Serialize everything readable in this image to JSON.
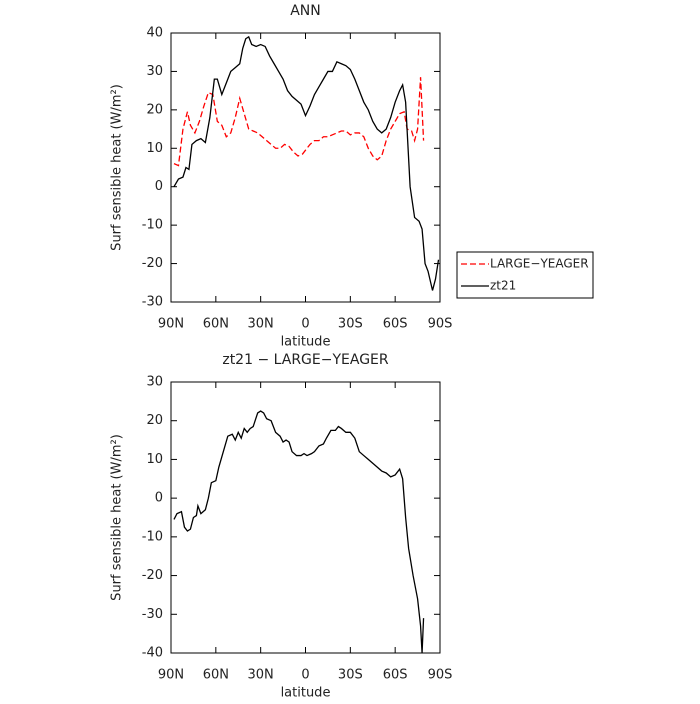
{
  "chart_data": [
    {
      "type": "line",
      "title": "ANN",
      "x_label": "latitude",
      "y_label": "Surf sensible heat (W/m²)",
      "xlim": [
        90,
        -90
      ],
      "xticks": [
        {
          "value": 90,
          "label": "90N"
        },
        {
          "value": 60,
          "label": "60N"
        },
        {
          "value": 30,
          "label": "30N"
        },
        0,
        {
          "value": -30,
          "label": "30S"
        },
        {
          "value": -60,
          "label": "60S"
        },
        {
          "value": -90,
          "label": "90S"
        }
      ],
      "ylim": [
        -30,
        40
      ],
      "yticks": [
        -30,
        -20,
        -10,
        0,
        10,
        20,
        30,
        40
      ],
      "legend": "right",
      "series": [
        {
          "name": "LARGE−YEAGER",
          "color": "#ff0000",
          "line_style": "dashed",
          "x": [
            88,
            85,
            82,
            79,
            77,
            74,
            71,
            68,
            65,
            62,
            59,
            56,
            53,
            50,
            47,
            44,
            41,
            38,
            35,
            32,
            29,
            26,
            23,
            20,
            17,
            14,
            11,
            8,
            5,
            2,
            0,
            -3,
            -6,
            -9,
            -12,
            -15,
            -18,
            -21,
            -24,
            -27,
            -30,
            -33,
            -36,
            -39,
            -42,
            -45,
            -48,
            -51,
            -54,
            -57,
            -60,
            -63,
            -66,
            -68,
            -71,
            -73,
            -75,
            -77,
            -79
          ],
          "values": [
            6,
            5.5,
            15,
            19.5,
            16,
            14,
            17,
            21,
            24.5,
            24,
            17,
            16,
            13,
            14,
            18,
            23,
            19,
            15,
            14.5,
            14,
            13,
            12,
            11,
            10,
            10,
            11,
            10.5,
            9,
            8,
            8.5,
            9.5,
            11,
            12,
            12,
            13,
            13,
            13.5,
            14,
            14.5,
            14.5,
            13.5,
            14,
            14,
            13,
            10,
            8,
            7,
            8,
            12,
            15,
            17,
            19,
            19.5,
            15,
            14.5,
            12,
            15,
            28.5,
            12
          ]
        },
        {
          "name": "zt21",
          "color": "#000000",
          "line_style": "solid",
          "x": [
            88,
            85,
            82,
            80,
            78,
            76,
            73,
            70,
            67,
            64,
            61,
            59,
            56,
            53,
            50,
            47,
            44,
            42,
            40,
            38,
            36,
            33,
            30,
            27,
            24,
            21,
            18,
            15,
            12,
            9,
            6,
            3,
            0,
            -3,
            -6,
            -9,
            -12,
            -15,
            -18,
            -21,
            -24,
            -27,
            -30,
            -33,
            -36,
            -39,
            -42,
            -45,
            -48,
            -51,
            -54,
            -57,
            -60,
            -63,
            -65,
            -67,
            -70,
            -73,
            -76,
            -78,
            -80,
            -82,
            -85,
            -87,
            -89
          ],
          "values": [
            0,
            2,
            2.5,
            5,
            4.5,
            11,
            12,
            12.5,
            11.5,
            18,
            28,
            28,
            24,
            27,
            30,
            31,
            32,
            36,
            38.5,
            39,
            37,
            36.5,
            37,
            36.5,
            34,
            32,
            30,
            28,
            25,
            23.5,
            22.5,
            21.5,
            18.5,
            21,
            24,
            26,
            28,
            30,
            30,
            32.5,
            32,
            31.5,
            30.5,
            28,
            25,
            22,
            20,
            17,
            15,
            14,
            15,
            18,
            22,
            25,
            26.5,
            22,
            0,
            -8,
            -9,
            -11,
            -20,
            -22,
            -27,
            -24,
            -19
          ]
        }
      ]
    },
    {
      "type": "line",
      "title": "zt21 − LARGE−YEAGER",
      "x_label": "latitude",
      "y_label": "Surf sensible heat (W/m²)",
      "xlim": [
        90,
        -90
      ],
      "xticks": [
        {
          "value": 90,
          "label": "90N"
        },
        {
          "value": 60,
          "label": "60N"
        },
        {
          "value": 30,
          "label": "30N"
        },
        0,
        {
          "value": -30,
          "label": "30S"
        },
        {
          "value": -60,
          "label": "60S"
        },
        {
          "value": -90,
          "label": "90S"
        }
      ],
      "ylim": [
        -40,
        30
      ],
      "yticks": [
        -40,
        -30,
        -20,
        -10,
        0,
        10,
        20,
        30
      ],
      "series": [
        {
          "color": "#000000",
          "line_style": "solid",
          "x": [
            88,
            86,
            83,
            81,
            79,
            77,
            75,
            73,
            72,
            70,
            67,
            65,
            63,
            60,
            58,
            55,
            52,
            49,
            47,
            45,
            43,
            41,
            39,
            37,
            35,
            32,
            30,
            28,
            26,
            23,
            20,
            17,
            15,
            13,
            11,
            9,
            6,
            3,
            1,
            -1,
            -4,
            -6,
            -9,
            -12,
            -14,
            -17,
            -20,
            -22,
            -24,
            -27,
            -30,
            -33,
            -36,
            -39,
            -42,
            -45,
            -48,
            -51,
            -54,
            -57,
            -60,
            -63,
            -65,
            -67,
            -69,
            -72,
            -75,
            -77,
            -78,
            -79
          ],
          "values": [
            -5.5,
            -4,
            -3.5,
            -7.5,
            -8.5,
            -8,
            -5,
            -4.5,
            -2,
            -4,
            -3,
            0,
            4,
            4.5,
            8,
            12,
            16,
            16.5,
            15,
            17,
            15.5,
            18,
            17,
            18,
            18.5,
            22,
            22.5,
            22,
            20.5,
            20,
            17,
            16,
            14.5,
            15,
            14.5,
            12,
            11,
            11,
            11.5,
            11,
            11.5,
            12,
            13.5,
            14,
            15.5,
            17.5,
            17.5,
            18.5,
            18,
            17,
            17,
            15.5,
            12,
            11,
            10,
            9,
            8,
            7,
            6.5,
            5.5,
            6,
            7.5,
            5,
            -5,
            -13,
            -20,
            -26,
            -33,
            -40,
            -31
          ]
        }
      ]
    }
  ]
}
